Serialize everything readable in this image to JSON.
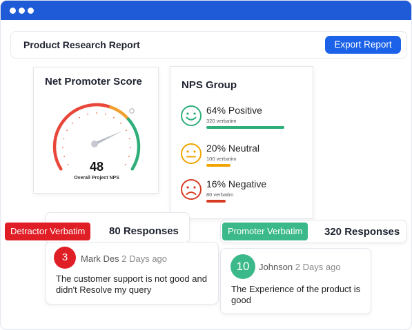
{
  "header": {
    "title": "Product Research Report",
    "export_label": "Export Report"
  },
  "nps": {
    "title": "Net Promoter Score",
    "score": "48",
    "caption": "Overall Project NPS",
    "score_value": 48,
    "range": [
      -100,
      100
    ],
    "colors": {
      "red": "#e8473a",
      "orange": "#f0a030",
      "green": "#2fae7a",
      "ticks": "#e96a4a"
    }
  },
  "group": {
    "title": "NPS Group",
    "items": [
      {
        "label": "64% Positive",
        "sub": "320 verbatim",
        "pct": 64,
        "color": "#2fae7a",
        "icon": "happy-face-icon"
      },
      {
        "label": "20% Neutral",
        "sub": "100 verbatim",
        "pct": 20,
        "color": "#f0a500",
        "icon": "neutral-face-icon"
      },
      {
        "label": "16% Negative",
        "sub": "80 verbatim",
        "pct": 16,
        "color": "#d63b22",
        "icon": "sad-face-icon"
      }
    ]
  },
  "detractor": {
    "tag": "Detractor Verbatim",
    "count": "80 Responses",
    "tag_color": "#e01e26",
    "avatar": "3",
    "name": "Mark Des",
    "ago": "2 Days ago",
    "message": "The customer support is not good and didn't Resolve my query"
  },
  "promoter": {
    "tag": "Promoter Verbatim",
    "count": "320 Responses",
    "tag_color": "#3cb98a",
    "avatar": "10",
    "name": "Johnson",
    "ago": "2 Days ago",
    "message": "The Experience of the product is good"
  }
}
